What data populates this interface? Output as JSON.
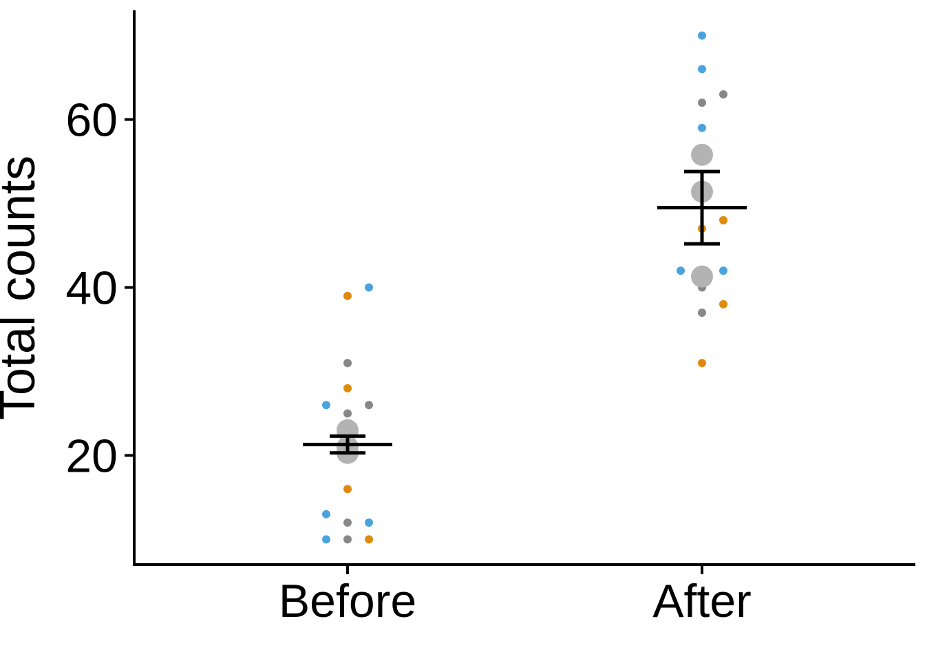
{
  "chart_data": {
    "type": "scatter",
    "ylabel": "Total counts",
    "xlabel": "",
    "categories": [
      "Before",
      "After"
    ],
    "ylim": [
      7,
      73
    ],
    "yticks": [
      20,
      40,
      60
    ],
    "colors": {
      "blue": "#4aa3df",
      "orange": "#de8a0e",
      "grey": "#888888",
      "mean_marker": "#b3b3b3",
      "axis": "#000000"
    },
    "points": [
      {
        "group": "Before",
        "offset": 0,
        "y": 39,
        "color": "orange"
      },
      {
        "group": "Before",
        "offset": 1,
        "y": 40,
        "color": "blue"
      },
      {
        "group": "Before",
        "offset": 0,
        "y": 31,
        "color": "grey"
      },
      {
        "group": "Before",
        "offset": 0,
        "y": 28,
        "color": "orange"
      },
      {
        "group": "Before",
        "offset": -1,
        "y": 26,
        "color": "blue"
      },
      {
        "group": "Before",
        "offset": 1,
        "y": 26,
        "color": "grey"
      },
      {
        "group": "Before",
        "offset": 0,
        "y": 25,
        "color": "grey"
      },
      {
        "group": "Before",
        "offset": 0,
        "y": 16,
        "color": "orange"
      },
      {
        "group": "Before",
        "offset": -1,
        "y": 13,
        "color": "blue"
      },
      {
        "group": "Before",
        "offset": 0,
        "y": 12,
        "color": "grey"
      },
      {
        "group": "Before",
        "offset": 1,
        "y": 12,
        "color": "blue"
      },
      {
        "group": "Before",
        "offset": -1,
        "y": 10,
        "color": "blue"
      },
      {
        "group": "Before",
        "offset": 0,
        "y": 10,
        "color": "grey"
      },
      {
        "group": "Before",
        "offset": 1,
        "y": 10,
        "color": "orange"
      },
      {
        "group": "After",
        "offset": 0,
        "y": 70,
        "color": "blue"
      },
      {
        "group": "After",
        "offset": 0,
        "y": 66,
        "color": "blue"
      },
      {
        "group": "After",
        "offset": 0,
        "y": 62,
        "color": "grey"
      },
      {
        "group": "After",
        "offset": 1,
        "y": 63,
        "color": "grey"
      },
      {
        "group": "After",
        "offset": 0,
        "y": 59,
        "color": "blue"
      },
      {
        "group": "After",
        "offset": 0,
        "y": 47,
        "color": "orange"
      },
      {
        "group": "After",
        "offset": 1,
        "y": 48,
        "color": "orange"
      },
      {
        "group": "After",
        "offset": -1,
        "y": 42,
        "color": "blue"
      },
      {
        "group": "After",
        "offset": 1,
        "y": 42,
        "color": "blue"
      },
      {
        "group": "After",
        "offset": 0,
        "y": 40,
        "color": "grey"
      },
      {
        "group": "After",
        "offset": 1,
        "y": 38,
        "color": "orange"
      },
      {
        "group": "After",
        "offset": 0,
        "y": 37,
        "color": "grey"
      },
      {
        "group": "After",
        "offset": 0,
        "y": 31,
        "color": "orange"
      }
    ],
    "group_means": [
      {
        "group": "Before",
        "y": 23
      },
      {
        "group": "Before",
        "y": 21
      },
      {
        "group": "Before",
        "y": 20.3
      },
      {
        "group": "After",
        "y": 55.8
      },
      {
        "group": "After",
        "y": 51.4
      },
      {
        "group": "After",
        "y": 41.3
      }
    ],
    "summary": [
      {
        "group": "Before",
        "mean": 21.3,
        "lower": 20.3,
        "upper": 22.3
      },
      {
        "group": "After",
        "mean": 49.5,
        "lower": 45.2,
        "upper": 53.8
      }
    ]
  }
}
